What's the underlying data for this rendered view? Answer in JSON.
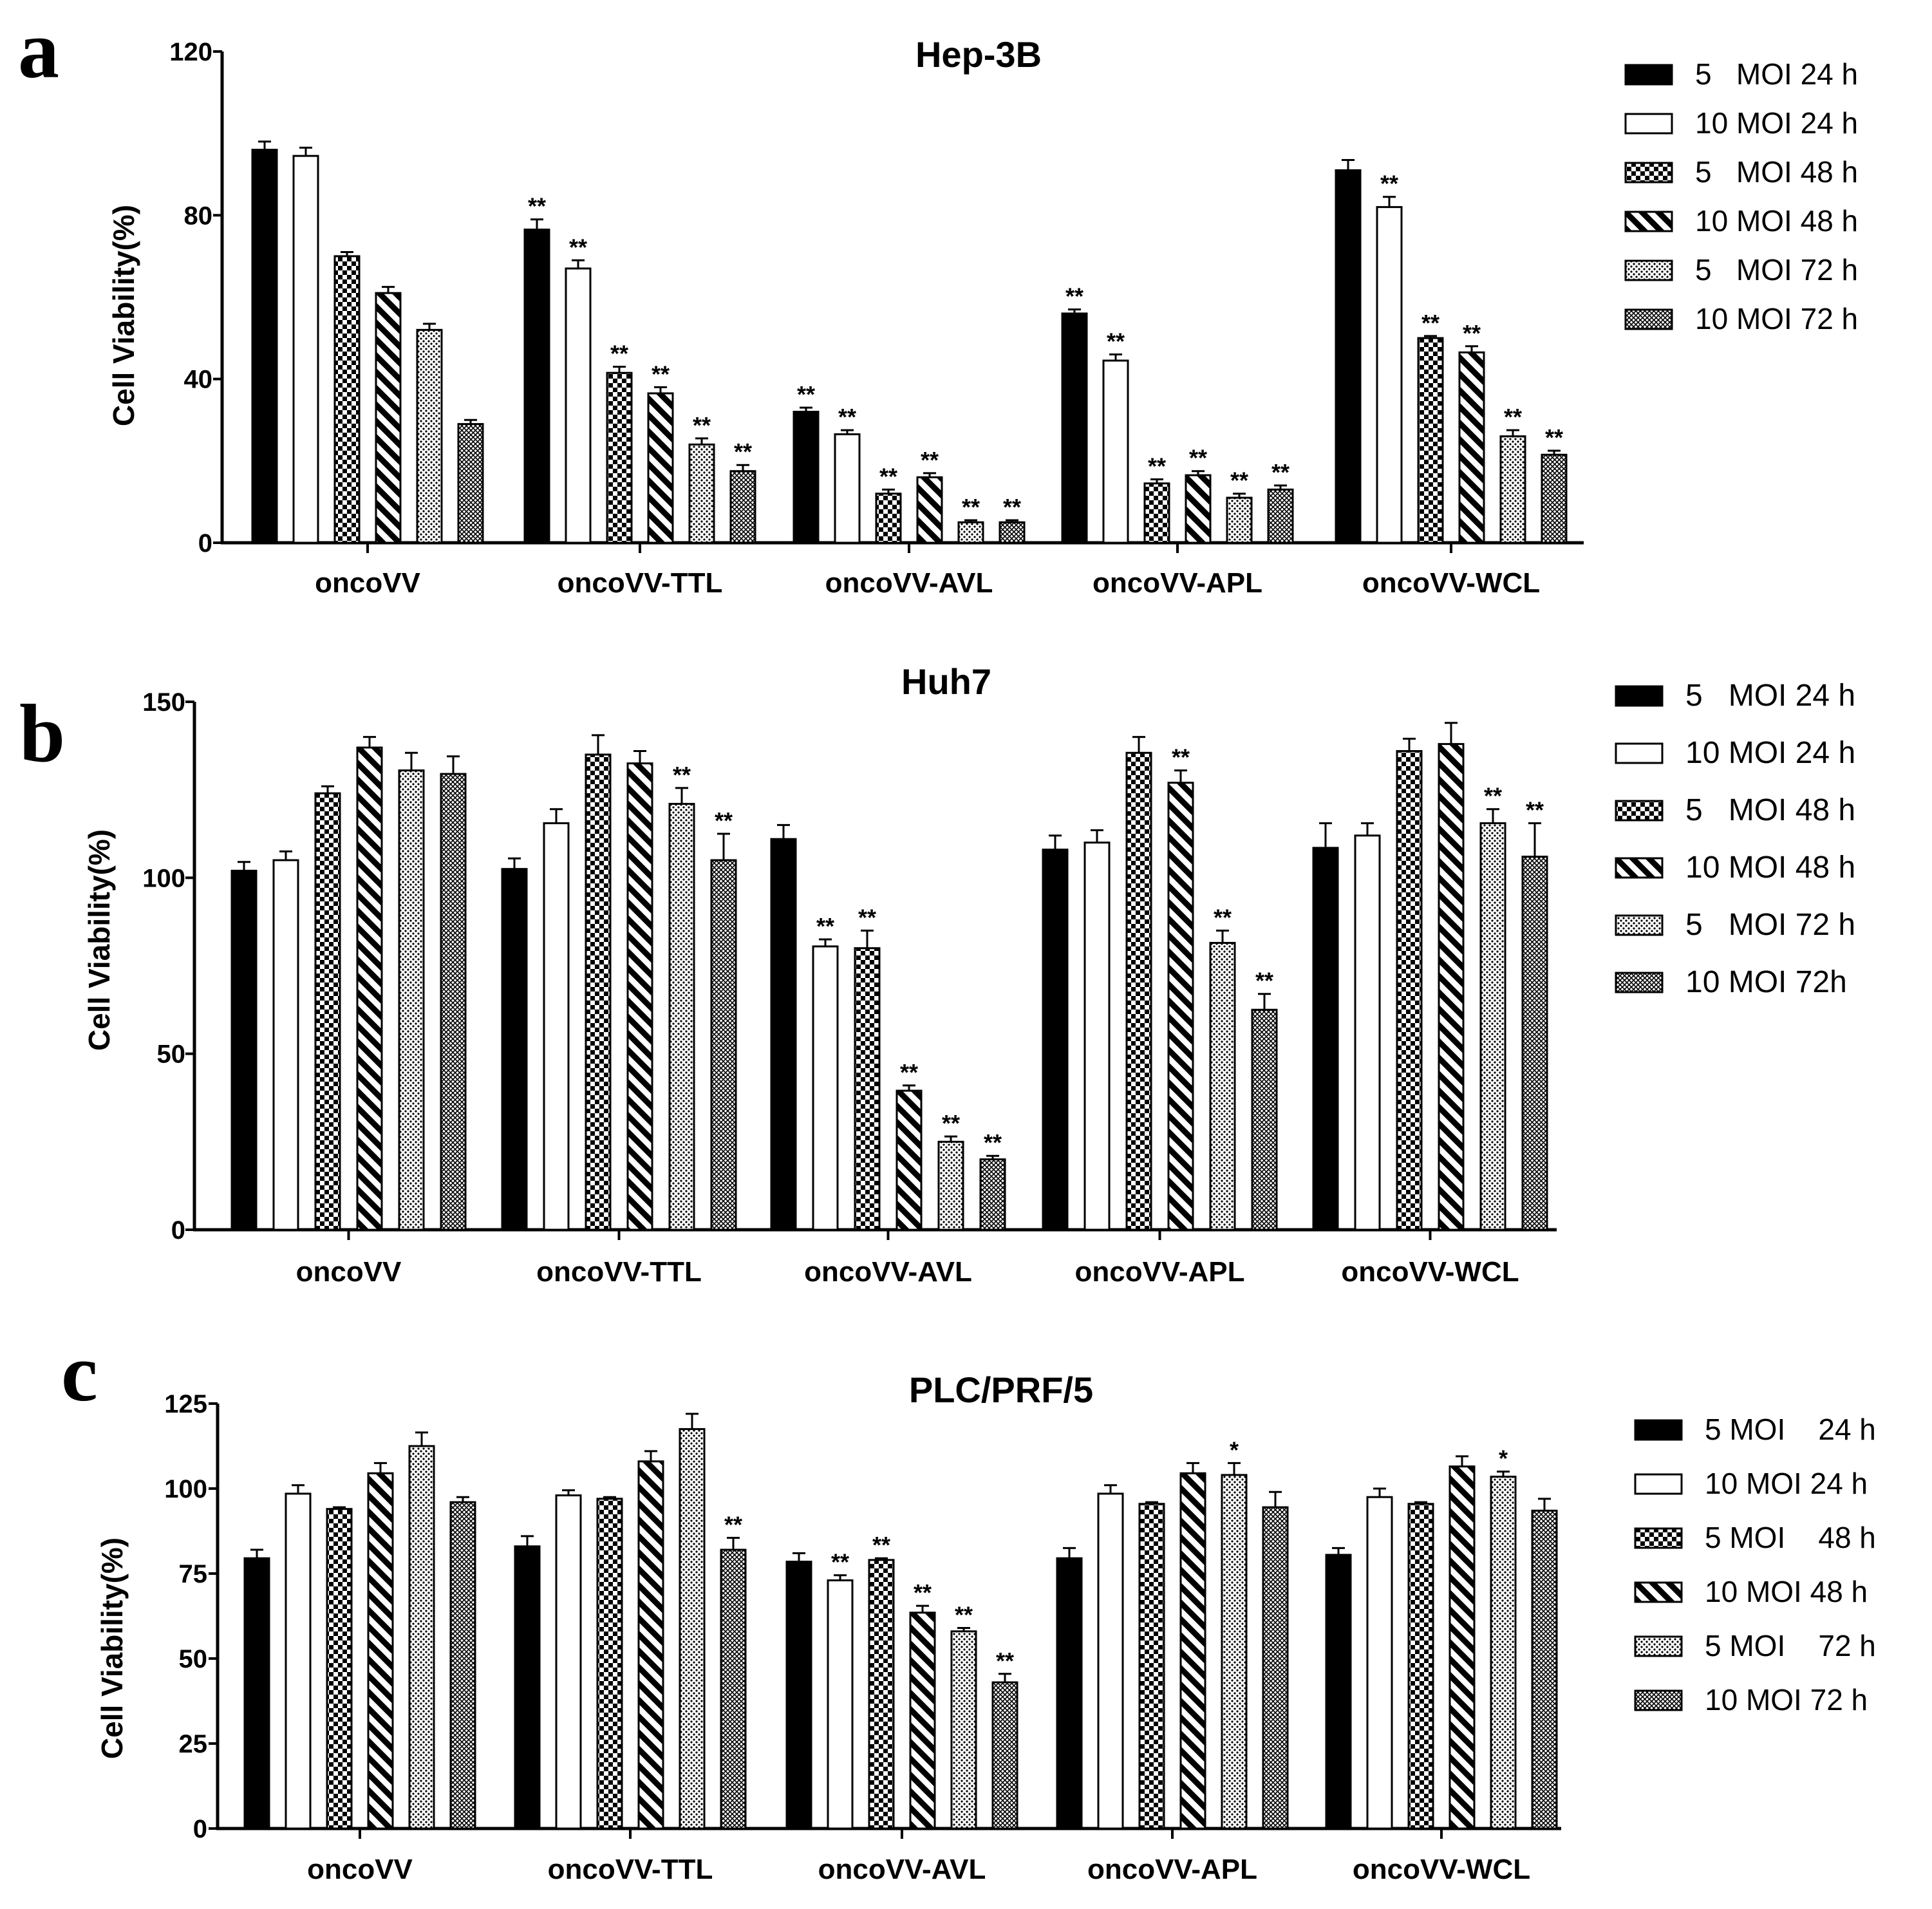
{
  "legend_swatch_legend": [
    "solid",
    "open",
    "checker",
    "diag",
    "dots",
    "cross"
  ],
  "colors": {
    "ink": "#000000",
    "background": "#ffffff"
  },
  "chart_data": [
    {
      "panel_label": "a",
      "type": "bar",
      "title": "Hep-3B",
      "ylabel": "Cell Viability(%)",
      "xlabel": "",
      "ylim": [
        0,
        120
      ],
      "yticks": [
        "0",
        "40",
        "80",
        "120"
      ],
      "ytick_values": [
        0,
        40,
        80,
        120
      ],
      "categories": [
        "oncoVV",
        "oncoVV-TTL",
        "oncoVV-AVL",
        "oncoVV-APL",
        "oncoVV-WCL"
      ],
      "legend_position": "right",
      "series": [
        {
          "name": "5   MOI 24 h",
          "pattern": "solid",
          "values": [
            96,
            76.5,
            32,
            56,
            91
          ],
          "errors": [
            2,
            2.5,
            1,
            1,
            2.5
          ],
          "marks": [
            "",
            "**",
            "**",
            "**",
            ""
          ]
        },
        {
          "name": "10 MOI 24 h",
          "pattern": "open",
          "values": [
            94.5,
            67,
            26.5,
            44.5,
            82
          ],
          "errors": [
            2,
            2,
            1,
            1.5,
            2.5
          ],
          "marks": [
            "",
            "**",
            "**",
            "**",
            "**"
          ]
        },
        {
          "name": "5   MOI 48 h",
          "pattern": "checker",
          "values": [
            70,
            41.5,
            12,
            14.5,
            50
          ],
          "errors": [
            1,
            1.5,
            1,
            1,
            0.5
          ],
          "marks": [
            "",
            "**",
            "**",
            "**",
            "**"
          ]
        },
        {
          "name": "10 MOI 48 h",
          "pattern": "diag",
          "values": [
            61,
            36.5,
            16,
            16.5,
            46.5
          ],
          "errors": [
            1.5,
            1.5,
            1,
            1,
            1.5
          ],
          "marks": [
            "",
            "**",
            "**",
            "**",
            "**"
          ]
        },
        {
          "name": "5   MOI 72 h",
          "pattern": "dots",
          "values": [
            52,
            24,
            5,
            11,
            26
          ],
          "errors": [
            1.5,
            1.5,
            0.5,
            1,
            1.5
          ],
          "marks": [
            "",
            "**",
            "**",
            "**",
            "**"
          ]
        },
        {
          "name": "10 MOI 72 h",
          "pattern": "cross",
          "values": [
            29,
            17.5,
            5,
            13,
            21.5
          ],
          "errors": [
            1,
            1.5,
            0.5,
            1,
            1
          ],
          "marks": [
            "",
            "**",
            "**",
            "**",
            "**"
          ]
        }
      ]
    },
    {
      "panel_label": "b",
      "type": "bar",
      "title": "Huh7",
      "ylabel": "Cell Viability(%)",
      "xlabel": "",
      "ylim": [
        0,
        150
      ],
      "yticks": [
        "0",
        "50",
        "100",
        "150"
      ],
      "ytick_values": [
        0,
        50,
        100,
        150
      ],
      "categories": [
        "oncoVV",
        "oncoVV-TTL",
        "oncoVV-AVL",
        "oncoVV-APL",
        "oncoVV-WCL"
      ],
      "legend_position": "right",
      "series": [
        {
          "name": "5   MOI 24 h",
          "pattern": "solid",
          "values": [
            102,
            102.5,
            111,
            108,
            108.5
          ],
          "errors": [
            2.5,
            3,
            4,
            4,
            7
          ],
          "marks": [
            "",
            "",
            "",
            "",
            ""
          ]
        },
        {
          "name": "10 MOI 24 h",
          "pattern": "open",
          "values": [
            105,
            115.5,
            80.5,
            110,
            112
          ],
          "errors": [
            2.5,
            4,
            2,
            3.5,
            3.5
          ],
          "marks": [
            "",
            "",
            "**",
            "",
            ""
          ]
        },
        {
          "name": "5   MOI 48 h",
          "pattern": "checker",
          "values": [
            124,
            135,
            80,
            135.5,
            136
          ],
          "errors": [
            2,
            5.5,
            5,
            4.5,
            3.5
          ],
          "marks": [
            "",
            "",
            "**",
            "",
            ""
          ]
        },
        {
          "name": "10 MOI 48 h",
          "pattern": "diag",
          "values": [
            137,
            132.5,
            39.5,
            127,
            138
          ],
          "errors": [
            3,
            3.5,
            1.5,
            3.5,
            6
          ],
          "marks": [
            "",
            "",
            "**",
            "**",
            ""
          ]
        },
        {
          "name": "5   MOI 72 h",
          "pattern": "dots",
          "values": [
            130.5,
            121,
            25,
            81.5,
            115.5
          ],
          "errors": [
            5,
            4.5,
            1.5,
            3.5,
            4
          ],
          "marks": [
            "",
            "**",
            "**",
            "**",
            "**"
          ]
        },
        {
          "name": "10 MOI 72h",
          "pattern": "cross",
          "values": [
            129.5,
            105,
            20,
            62.5,
            106
          ],
          "errors": [
            5,
            7.5,
            1,
            4.5,
            9.5
          ],
          "marks": [
            "",
            "**",
            "**",
            "**",
            "**"
          ]
        }
      ]
    },
    {
      "panel_label": "c",
      "type": "bar",
      "title": "PLC/PRF/5",
      "ylabel": "Cell Viability(%)",
      "xlabel": "",
      "ylim": [
        0,
        125
      ],
      "yticks": [
        "0",
        "25",
        "50",
        "75",
        "100",
        "125"
      ],
      "ytick_values": [
        0,
        25,
        50,
        75,
        100,
        125
      ],
      "categories": [
        "oncoVV",
        "oncoVV-TTL",
        "oncoVV-AVL",
        "oncoVV-APL",
        "oncoVV-WCL"
      ],
      "legend_position": "right",
      "series": [
        {
          "name": "5 MOI    24 h",
          "pattern": "solid",
          "values": [
            79.5,
            83,
            78.5,
            79.5,
            80.5
          ],
          "errors": [
            2.5,
            3,
            2.5,
            3,
            2
          ],
          "marks": [
            "",
            "",
            "",
            "",
            ""
          ]
        },
        {
          "name": "10 MOI 24 h",
          "pattern": "open",
          "values": [
            98.5,
            98,
            73,
            98.5,
            97.5
          ],
          "errors": [
            2.5,
            1.5,
            1.5,
            2.5,
            2.5
          ],
          "marks": [
            "",
            "",
            "**",
            "",
            ""
          ]
        },
        {
          "name": "5 MOI    48 h",
          "pattern": "checker",
          "values": [
            94,
            97,
            79,
            95.5,
            95.5
          ],
          "errors": [
            0.5,
            0.5,
            0.5,
            0.5,
            0.5
          ],
          "marks": [
            "",
            "",
            "**",
            "",
            ""
          ]
        },
        {
          "name": "10 MOI 48 h",
          "pattern": "diag",
          "values": [
            104.5,
            108,
            63.5,
            104.5,
            106.5
          ],
          "errors": [
            3,
            3,
            2,
            3,
            3
          ],
          "marks": [
            "",
            "",
            "**",
            "",
            ""
          ]
        },
        {
          "name": "5 MOI    72 h",
          "pattern": "dots",
          "values": [
            112.5,
            117.5,
            58,
            104,
            103.5
          ],
          "errors": [
            4,
            4.5,
            1,
            3.5,
            1.5
          ],
          "marks": [
            "",
            "",
            "**",
            "*",
            "*"
          ]
        },
        {
          "name": "10 MOI 72 h",
          "pattern": "cross",
          "values": [
            96,
            82,
            43,
            94.5,
            93.5
          ],
          "errors": [
            1.5,
            3.5,
            2.5,
            4.5,
            3.5
          ],
          "marks": [
            "",
            "**",
            "**",
            "",
            ""
          ]
        }
      ]
    }
  ]
}
